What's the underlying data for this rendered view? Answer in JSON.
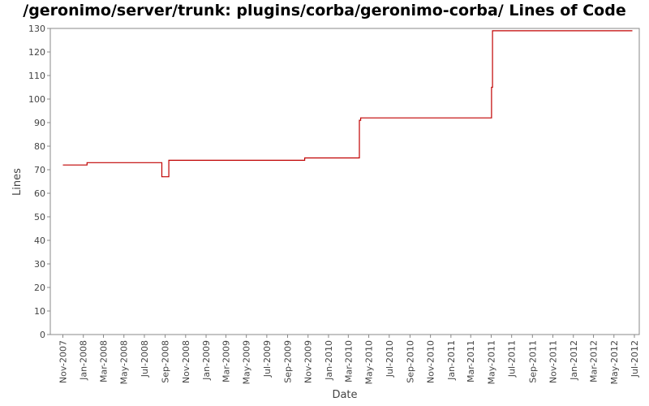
{
  "chart_data": {
    "type": "line",
    "title": "/geronimo/server/trunk: plugins/corba/geronimo-corba/ Lines of Code",
    "xlabel": "Date",
    "ylabel": "Lines",
    "ylim": [
      0,
      130
    ],
    "y_ticks": [
      "0",
      "10",
      "20",
      "30",
      "40",
      "50",
      "60",
      "70",
      "80",
      "90",
      "100",
      "110",
      "120",
      "130"
    ],
    "x_tick_labels": [
      "Nov-2007",
      "Jan-2008",
      "Mar-2008",
      "May-2008",
      "Jul-2008",
      "Sep-2008",
      "Nov-2008",
      "Jan-2009",
      "Mar-2009",
      "May-2009",
      "Jul-2009",
      "Sep-2009",
      "Nov-2009",
      "Jan-2010",
      "Mar-2010",
      "May-2010",
      "Jul-2010",
      "Sep-2010",
      "Nov-2010",
      "Jan-2011",
      "Mar-2011",
      "May-2011",
      "Jul-2011",
      "Sep-2011",
      "Nov-2011",
      "Jan-2012",
      "Mar-2012",
      "May-2012",
      "Jul-2012"
    ],
    "grid": false,
    "legend": "none",
    "series_color": "#c00000",
    "series": [
      {
        "step": true,
        "x": [
          "2007-11-01",
          "2008-01-10",
          "2008-01-12",
          "2008-08-20",
          "2008-08-22",
          "2008-09-10",
          "2008-09-12",
          "2009-10-20",
          "2009-10-22",
          "2010-04-01",
          "2010-04-03",
          "2010-04-05",
          "2010-04-07",
          "2011-05-01",
          "2011-05-02",
          "2011-05-04",
          "2011-05-05",
          "2012-06-25"
        ],
        "y": [
          72,
          72,
          73,
          73,
          67,
          67,
          74,
          74,
          75,
          75,
          91,
          91,
          92,
          92,
          105,
          105,
          129,
          129
        ]
      }
    ]
  }
}
